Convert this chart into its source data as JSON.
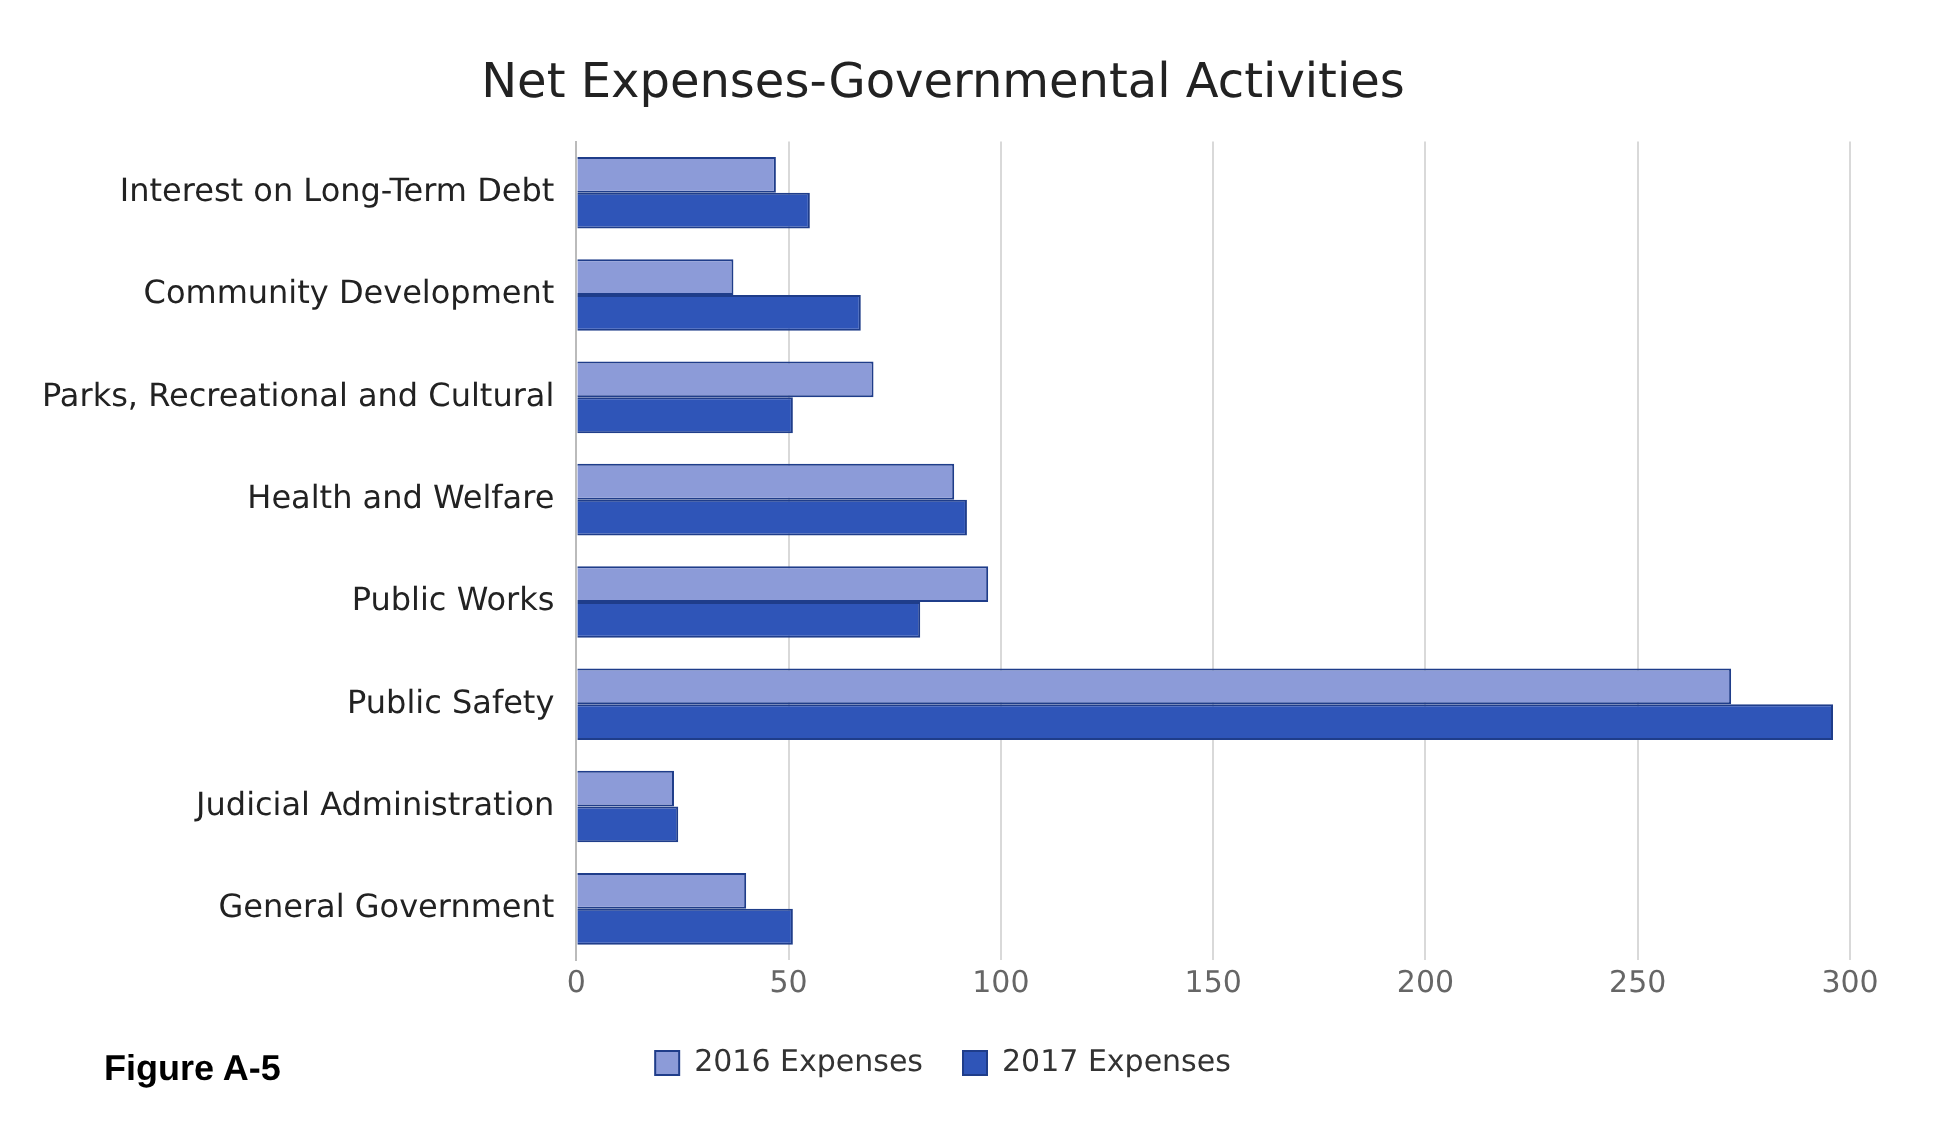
{
  "chart_data": {
    "type": "bar",
    "orientation": "horizontal",
    "title": "Net Expenses-Governmental Activities",
    "categories": [
      "Interest on Long-Term Debt",
      "Community Development",
      "Parks, Recreational and Cultural",
      "Health and Welfare",
      "Public Works",
      "Public Safety",
      "Judicial Administration",
      "General Government"
    ],
    "series": [
      {
        "name": "2016 Expenses",
        "color": "#8c9bd8",
        "values": [
          47,
          37,
          70,
          89,
          97,
          272,
          23,
          40
        ]
      },
      {
        "name": "2017 Expenses",
        "color": "#2f55b8",
        "values": [
          55,
          67,
          51,
          92,
          81,
          296,
          24,
          51
        ]
      }
    ],
    "xlim": [
      0,
      300
    ],
    "xticks": [
      0,
      50,
      100,
      150,
      200,
      250,
      300
    ],
    "grid": "x",
    "legend": "bottom",
    "annotations": [
      "Figure A-5"
    ]
  }
}
